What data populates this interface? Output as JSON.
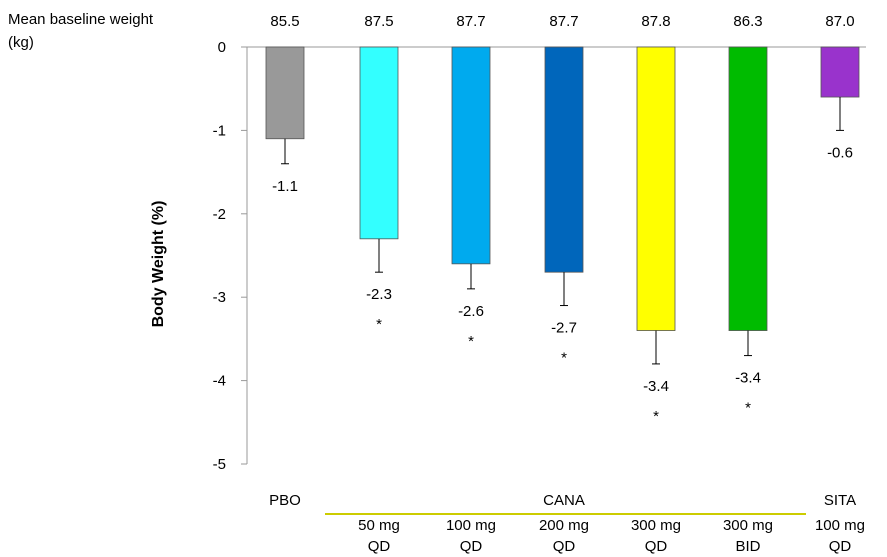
{
  "chart_data": {
    "type": "bar",
    "ylabel": "Body Weight (%)",
    "ylim": [
      -5,
      0
    ],
    "yticks": [
      "0",
      "-1",
      "-2",
      "-3",
      "-4",
      "-5"
    ],
    "baseline_title_line1": "Mean baseline weight",
    "baseline_title_line2": "(kg)",
    "groups": [
      {
        "name": "PBO",
        "line1": "",
        "line2": "",
        "baseline": "85.5",
        "value": -1.1,
        "label": "-1.1",
        "err_low": -1.4,
        "err_high": -1.1,
        "sig": "",
        "color": "#999999"
      },
      {
        "name": "",
        "line1": "50 mg",
        "line2": "QD",
        "baseline": "87.5",
        "value": -2.3,
        "label": "-2.3",
        "err_low": -2.7,
        "err_high": -2.3,
        "sig": "*",
        "color": "#33ffff"
      },
      {
        "name": "",
        "line1": "100 mg",
        "line2": "QD",
        "baseline": "87.7",
        "value": -2.6,
        "label": "-2.6",
        "err_low": -2.9,
        "err_high": -2.6,
        "sig": "*",
        "color": "#00aaee"
      },
      {
        "name": "",
        "line1": "200 mg",
        "line2": "QD",
        "baseline": "87.7",
        "value": -2.7,
        "label": "-2.7",
        "err_low": -3.1,
        "err_high": -2.7,
        "sig": "*",
        "color": "#0066bb"
      },
      {
        "name": "",
        "line1": "300 mg",
        "line2": "QD",
        "baseline": "87.8",
        "value": -3.4,
        "label": "-3.4",
        "err_low": -3.8,
        "err_high": -3.4,
        "sig": "*",
        "color": "#ffff00"
      },
      {
        "name": "",
        "line1": "300 mg",
        "line2": "BID",
        "baseline": "86.3",
        "value": -3.4,
        "label": "-3.4",
        "err_low": -3.7,
        "err_high": -3.4,
        "sig": "*",
        "color": "#00bb00"
      },
      {
        "name": "SITA",
        "line1": "100 mg",
        "line2": "QD",
        "baseline": "87.0",
        "value": -0.6,
        "label": "-0.6",
        "err_low": -1.0,
        "err_high": -0.6,
        "sig": "",
        "color": "#9933cc"
      }
    ],
    "group_label": "CANA",
    "group_bracket_color": "#cccc00",
    "axis_color": "#999999"
  }
}
